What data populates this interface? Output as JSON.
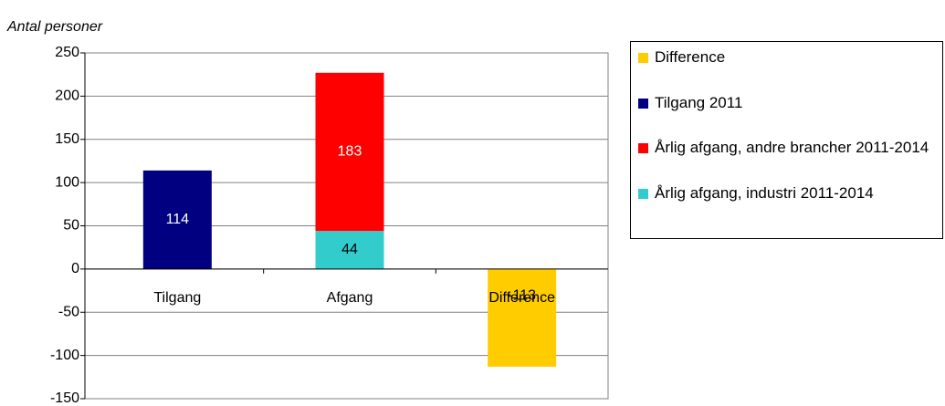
{
  "chart_data": {
    "type": "bar",
    "stacked": true,
    "ylabel": "Antal personer",
    "categories": [
      "Tilgang",
      "Afgang",
      "Difference"
    ],
    "series": [
      {
        "name": "Difference",
        "color": "#ffcc00",
        "values": [
          null,
          null,
          -113
        ]
      },
      {
        "name": "Tilgang 2011",
        "color": "#000080",
        "values": [
          114,
          null,
          null
        ]
      },
      {
        "name": "Årlig afgang, andre brancher 2011-2014",
        "color": "#ff0000",
        "values": [
          null,
          183,
          null
        ]
      },
      {
        "name": "Årlig afgang, industri 2011-2014",
        "color": "#33cccc",
        "values": [
          null,
          44,
          null
        ]
      }
    ],
    "stack_order": [
      3,
      2,
      1,
      0
    ],
    "ylim": [
      -150,
      250
    ],
    "yticks": [
      -150,
      -100,
      -50,
      0,
      50,
      100,
      150,
      200,
      250
    ],
    "grid": true,
    "legend": "right"
  }
}
